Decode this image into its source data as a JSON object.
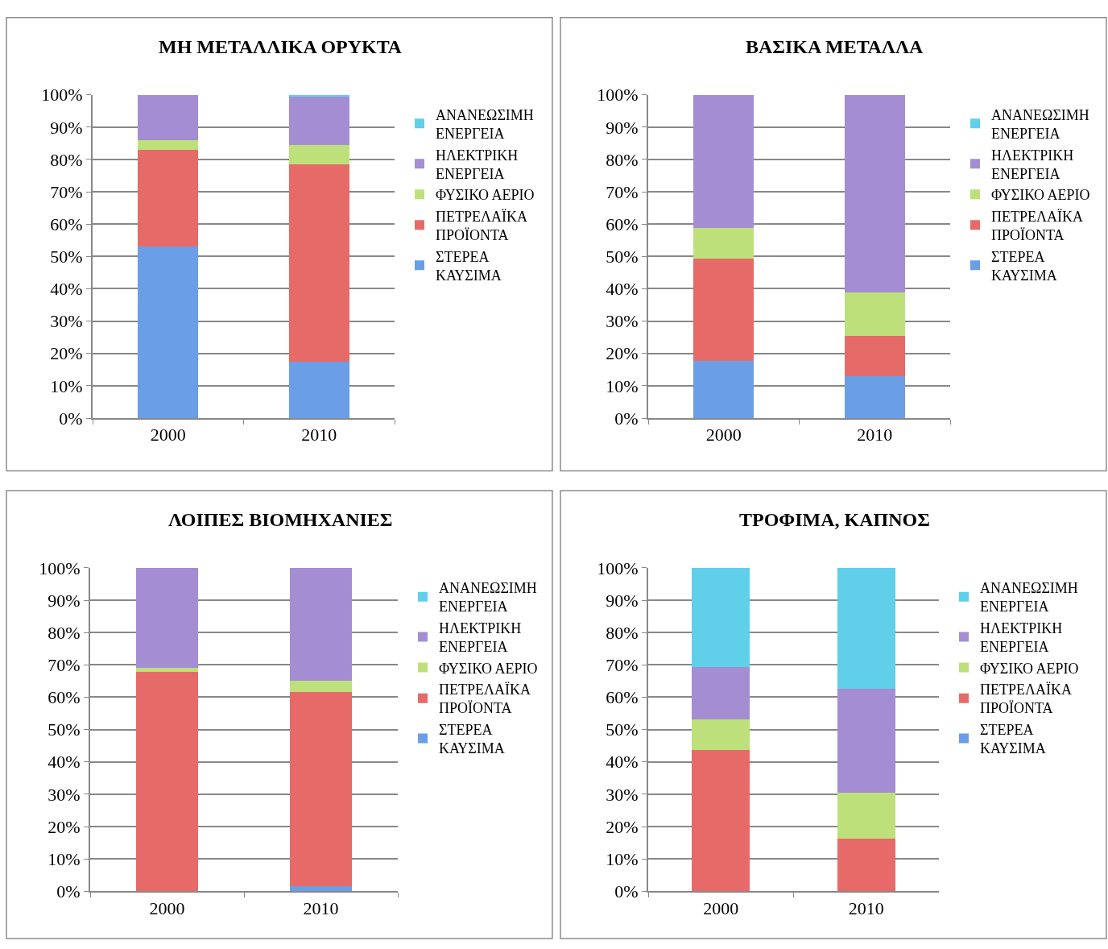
{
  "chart_data": [
    {
      "type": "bar",
      "title": "ΜΗ ΜΕΤΑΛΛΙΚΑ ΟΡΥΚΤΑ",
      "categories": [
        "2000",
        "2010"
      ],
      "stacked": true,
      "ylim": [
        0,
        100
      ],
      "yticks": [
        {
          "value": 0,
          "label": "0%"
        },
        {
          "value": 10,
          "label": "10%"
        },
        {
          "value": 20,
          "label": "20%"
        },
        {
          "value": 30,
          "label": "30%"
        },
        {
          "value": 40,
          "label": "40%"
        },
        {
          "value": 50,
          "label": "50%"
        },
        {
          "value": 60,
          "label": "60%"
        },
        {
          "value": 70,
          "label": "70%"
        },
        {
          "value": 80,
          "label": "80%"
        },
        {
          "value": 90,
          "label": "90%"
        },
        {
          "value": 100,
          "label": "100%"
        }
      ],
      "grid": "y",
      "legend": "right",
      "series": [
        {
          "name": "ΣΤΕΡΕΑ ΚΑΥΣΙΜΑ",
          "color": "#6a9ee6",
          "values": [
            53,
            17.5
          ]
        },
        {
          "name": "ΠΕΤΡΕΛΑΪΚΑ ΠΡΟΪΟΝΤΑ",
          "color": "#e66a68",
          "values": [
            30,
            61
          ]
        },
        {
          "name": "ΦΥΣΙΚΟ ΑΕΡΙΟ",
          "color": "#bde07a",
          "values": [
            3,
            6
          ]
        },
        {
          "name": "ΗΛΕΚΤΡΙΚΗ ΕΝΕΡΓΕΙΑ",
          "color": "#a48dd2",
          "values": [
            14,
            15.2
          ]
        },
        {
          "name": "ΑΝΑΝΕΩΣΙΜΗ ΕΝΕΡΓΕΙΑ",
          "color": "#5fcfea",
          "values": [
            0,
            0.3
          ]
        }
      ]
    },
    {
      "type": "bar",
      "title": "ΒΑΣΙΚΑ ΜΕΤΑΛΛΑ",
      "categories": [
        "2000",
        "2010"
      ],
      "stacked": true,
      "ylim": [
        0,
        100
      ],
      "yticks": [
        {
          "value": 0,
          "label": "0%"
        },
        {
          "value": 10,
          "label": "10%"
        },
        {
          "value": 20,
          "label": "20%"
        },
        {
          "value": 30,
          "label": "30%"
        },
        {
          "value": 40,
          "label": "40%"
        },
        {
          "value": 50,
          "label": "50%"
        },
        {
          "value": 60,
          "label": "60%"
        },
        {
          "value": 70,
          "label": "70%"
        },
        {
          "value": 80,
          "label": "80%"
        },
        {
          "value": 90,
          "label": "90%"
        },
        {
          "value": 100,
          "label": "100%"
        }
      ],
      "grid": "y",
      "legend": "right",
      "series": [
        {
          "name": "ΣΤΕΡΕΑ ΚΑΥΣΙΜΑ",
          "color": "#6a9ee6",
          "values": [
            17.8,
            12.9
          ]
        },
        {
          "name": "ΠΕΤΡΕΛΑΪΚΑ ΠΡΟΪΟΝΤΑ",
          "color": "#e66a68",
          "values": [
            31.5,
            12.4
          ]
        },
        {
          "name": "ΦΥΣΙΚΟ ΑΕΡΙΟ",
          "color": "#bde07a",
          "values": [
            9.5,
            13.5
          ]
        },
        {
          "name": "ΗΛΕΚΤΡΙΚΗ ΕΝΕΡΓΕΙΑ",
          "color": "#a48dd2",
          "values": [
            41.2,
            61.2
          ]
        },
        {
          "name": "ΑΝΑΝΕΩΣΙΜΗ ΕΝΕΡΓΕΙΑ",
          "color": "#5fcfea",
          "values": [
            0,
            0
          ]
        }
      ]
    },
    {
      "type": "bar",
      "title": "ΛΟΙΠΕΣ ΒΙΟΜΗΧΑΝΙΕΣ",
      "categories": [
        "2000",
        "2010"
      ],
      "stacked": true,
      "ylim": [
        0,
        100
      ],
      "yticks": [
        {
          "value": 0,
          "label": "0%"
        },
        {
          "value": 10,
          "label": "10%"
        },
        {
          "value": 20,
          "label": "20%"
        },
        {
          "value": 30,
          "label": "30%"
        },
        {
          "value": 40,
          "label": "40%"
        },
        {
          "value": 50,
          "label": "50%"
        },
        {
          "value": 60,
          "label": "60%"
        },
        {
          "value": 70,
          "label": "70%"
        },
        {
          "value": 80,
          "label": "80%"
        },
        {
          "value": 90,
          "label": "90%"
        },
        {
          "value": 100,
          "label": "100%"
        }
      ],
      "grid": "y",
      "legend": "right",
      "series": [
        {
          "name": "ΣΤΕΡΕΑ ΚΑΥΣΙΜΑ",
          "color": "#6a9ee6",
          "values": [
            0,
            1.6
          ]
        },
        {
          "name": "ΠΕΤΡΕΛΑΪΚΑ ΠΡΟΪΟΝΤΑ",
          "color": "#e66a68",
          "values": [
            67.8,
            59.9
          ]
        },
        {
          "name": "ΦΥΣΙΚΟ ΑΕΡΙΟ",
          "color": "#bde07a",
          "values": [
            1.3,
            3.6
          ]
        },
        {
          "name": "ΗΛΕΚΤΡΙΚΗ ΕΝΕΡΓΕΙΑ",
          "color": "#a48dd2",
          "values": [
            30.9,
            34.9
          ]
        },
        {
          "name": "ΑΝΑΝΕΩΣΙΜΗ ΕΝΕΡΓΕΙΑ",
          "color": "#5fcfea",
          "values": [
            0,
            0
          ]
        }
      ]
    },
    {
      "type": "bar",
      "title": "ΤΡΟΦΙΜΑ, ΚΑΠΝΟΣ",
      "categories": [
        "2000",
        "2010"
      ],
      "stacked": true,
      "ylim": [
        0,
        100
      ],
      "yticks": [
        {
          "value": 0,
          "label": "0%"
        },
        {
          "value": 10,
          "label": "10%"
        },
        {
          "value": 20,
          "label": "20%"
        },
        {
          "value": 30,
          "label": "30%"
        },
        {
          "value": 40,
          "label": "40%"
        },
        {
          "value": 50,
          "label": "50%"
        },
        {
          "value": 60,
          "label": "60%"
        },
        {
          "value": 70,
          "label": "70%"
        },
        {
          "value": 80,
          "label": "80%"
        },
        {
          "value": 90,
          "label": "90%"
        },
        {
          "value": 100,
          "label": "100%"
        }
      ],
      "grid": "y",
      "legend": "right",
      "series": [
        {
          "name": "ΣΤΕΡΕΑ ΚΑΥΣΙΜΑ",
          "color": "#6a9ee6",
          "values": [
            0,
            0
          ]
        },
        {
          "name": "ΠΕΤΡΕΛΑΪΚΑ ΠΡΟΪΟΝΤΑ",
          "color": "#e66a68",
          "values": [
            43.6,
            16.3
          ]
        },
        {
          "name": "ΦΥΣΙΚΟ ΑΕΡΙΟ",
          "color": "#bde07a",
          "values": [
            9.6,
            14.2
          ]
        },
        {
          "name": "ΗΛΕΚΤΡΙΚΗ ΕΝΕΡΓΕΙΑ",
          "color": "#a48dd2",
          "values": [
            16.1,
            32.0
          ]
        },
        {
          "name": "ΑΝΑΝΕΩΣΙΜΗ ΕΝΕΡΓΕΙΑ",
          "color": "#5fcfea",
          "values": [
            30.7,
            37.5
          ]
        }
      ]
    }
  ]
}
